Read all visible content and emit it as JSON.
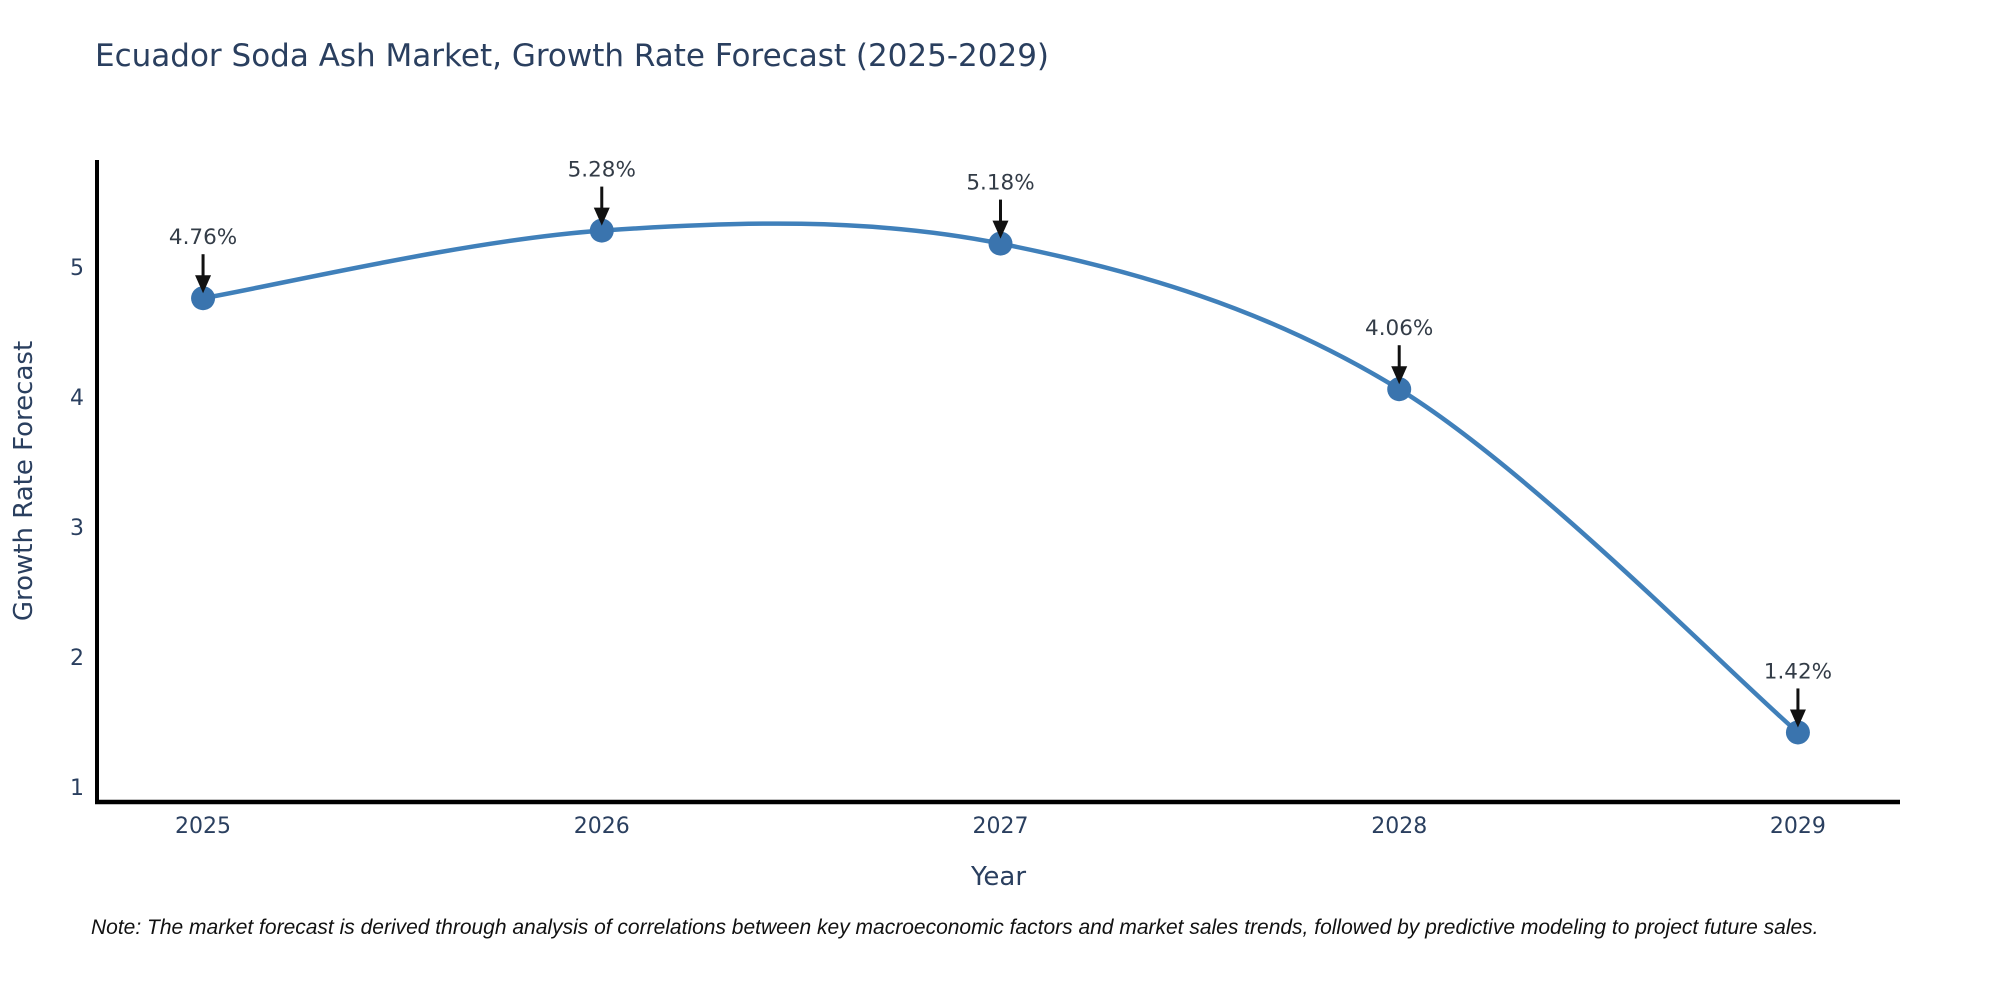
{
  "title": "Ecuador Soda Ash Market, Growth Rate Forecast (2025-2029)",
  "note": "Note: The market forecast is derived through analysis of correlations between key macroeconomic factors and market sales trends, followed by predictive modeling to project future sales.",
  "colors": {
    "line": "#4080ba",
    "marker": "#3a74ae",
    "axis": "#000000",
    "text": "#2a3f5f",
    "arrow": "#111111"
  },
  "chart_data": {
    "type": "line",
    "title": "Ecuador Soda Ash Market, Growth Rate Forecast (2025-2029)",
    "x": [
      2025,
      2026,
      2027,
      2028,
      2029
    ],
    "series": [
      {
        "name": "Growth Rate Forecast",
        "values": [
          4.76,
          5.28,
          5.18,
          4.06,
          1.42
        ]
      }
    ],
    "point_labels": [
      "4.76%",
      "5.28%",
      "5.18%",
      "4.06%",
      "1.42%"
    ],
    "xlabel": "Year",
    "ylabel": "Growth Rate Forecast",
    "xticks": [
      "2025",
      "2026",
      "2027",
      "2028",
      "2029"
    ],
    "yticks": [
      1,
      2,
      3,
      4,
      5
    ],
    "xlim": [
      2024.734,
      2029.256
    ],
    "ylim": [
      0.885,
      5.823
    ],
    "grid": false,
    "legend": "none",
    "line_shape": "spline",
    "markers": true,
    "annotation_arrows": true
  }
}
